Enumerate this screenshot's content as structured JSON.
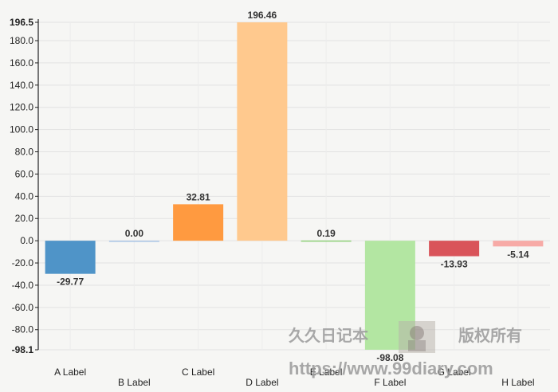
{
  "chart_data": {
    "type": "bar",
    "categories": [
      "A Label",
      "B Label",
      "C Label",
      "D Label",
      "E Label",
      "F Label",
      "G Label",
      "H Label"
    ],
    "values": [
      -29.77,
      0.0,
      32.81,
      196.46,
      0.19,
      -98.08,
      -13.93,
      -5.14
    ],
    "data_labels": [
      "-29.77",
      "0.00",
      "32.81",
      "196.46",
      "0.19",
      "-98.08",
      "-13.93",
      "-5.14"
    ],
    "colors": [
      "#4f94c8",
      "#aac6e6",
      "#ff9a40",
      "#ffc98e",
      "#8fd07a",
      "#b3e6a2",
      "#d9545a",
      "#f7aaa6"
    ],
    "ylim": [
      -98.1,
      196.5
    ],
    "yticks": [
      "196.5",
      "180.0",
      "160.0",
      "140.0",
      "120.0",
      "100.0",
      "80.0",
      "60.0",
      "40.0",
      "20.0",
      "0.0",
      "-20.0",
      "-40.0",
      "-60.0",
      "-80.0",
      "-98.1"
    ],
    "ytick_values": [
      196.5,
      180,
      160,
      140,
      120,
      100,
      80,
      60,
      40,
      20,
      0,
      -20,
      -40,
      -60,
      -80,
      -98.1
    ],
    "grid": true,
    "title": "",
    "xlabel": "",
    "ylabel": ""
  },
  "watermark": {
    "left_text": "久久日记本",
    "right_text": "版权所有",
    "url": "https://www.99diary.com"
  }
}
